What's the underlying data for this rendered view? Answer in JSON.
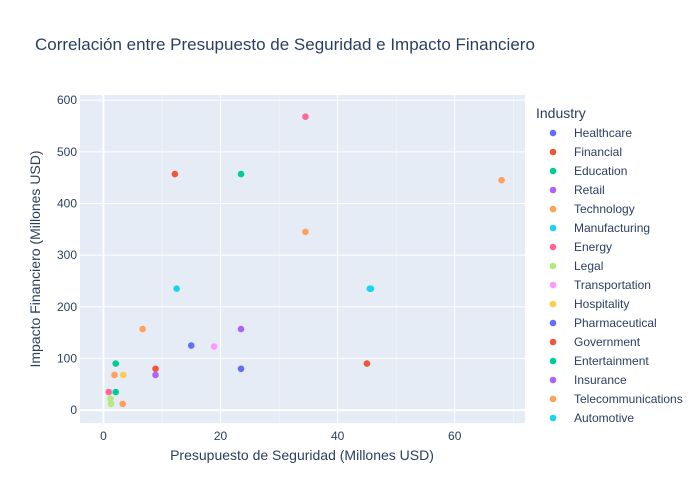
{
  "chart_data": {
    "type": "scatter",
    "title": "Correlación entre Presupuesto de Seguridad e Impacto Financiero",
    "xlabel": "Presupuesto de Seguridad (Millones USD)",
    "ylabel": "Impacto Financiero (Millones USD)",
    "xlim": [
      -4,
      72
    ],
    "ylim": [
      -25,
      610
    ],
    "xticks": [
      0,
      20,
      40,
      60
    ],
    "yticks": [
      0,
      100,
      200,
      300,
      400,
      500,
      600
    ],
    "grid": true,
    "legend_title": "Industry",
    "legend_position": "right",
    "series": [
      {
        "name": "Healthcare",
        "color": "#636efa",
        "points": [
          [
            15,
            125
          ],
          [
            23.5,
            80
          ]
        ]
      },
      {
        "name": "Financial",
        "color": "#ef553b",
        "points": [
          [
            12.2,
            457
          ],
          [
            8.9,
            80
          ],
          [
            45,
            90
          ]
        ]
      },
      {
        "name": "Education",
        "color": "#00cc96",
        "points": [
          [
            23.5,
            457
          ],
          [
            2.1,
            90
          ]
        ]
      },
      {
        "name": "Retail",
        "color": "#ab63fa",
        "points": [
          [
            23.5,
            157
          ],
          [
            8.9,
            68
          ]
        ]
      },
      {
        "name": "Technology",
        "color": "#ffa15a",
        "points": [
          [
            68,
            445
          ],
          [
            34.5,
            345
          ],
          [
            6.7,
            157
          ],
          [
            1.9,
            68
          ]
        ]
      },
      {
        "name": "Manufacturing",
        "color": "#19d3f3",
        "points": [
          [
            12.5,
            235
          ],
          [
            45.5,
            235
          ]
        ]
      },
      {
        "name": "Energy",
        "color": "#ff6692",
        "points": [
          [
            34.5,
            568
          ],
          [
            0.9,
            35
          ]
        ]
      },
      {
        "name": "Legal",
        "color": "#b6e880",
        "points": [
          [
            1.2,
            22
          ],
          [
            1.3,
            12
          ]
        ]
      },
      {
        "name": "Transportation",
        "color": "#ff97ff",
        "points": [
          [
            18.9,
            123
          ]
        ]
      },
      {
        "name": "Hospitality",
        "color": "#fecb52",
        "points": [
          [
            3.4,
            68
          ]
        ]
      },
      {
        "name": "Pharmaceutical",
        "color": "#636efa",
        "points": []
      },
      {
        "name": "Government",
        "color": "#ef553b",
        "points": []
      },
      {
        "name": "Entertainment",
        "color": "#00cc96",
        "points": [
          [
            2.1,
            35
          ]
        ]
      },
      {
        "name": "Insurance",
        "color": "#ab63fa",
        "points": []
      },
      {
        "name": "Telecommunications",
        "color": "#ffa15a",
        "points": [
          [
            3.3,
            12
          ]
        ]
      },
      {
        "name": "Automotive",
        "color": "#19d3f3",
        "points": [
          [
            45.7,
            235
          ]
        ]
      }
    ]
  }
}
